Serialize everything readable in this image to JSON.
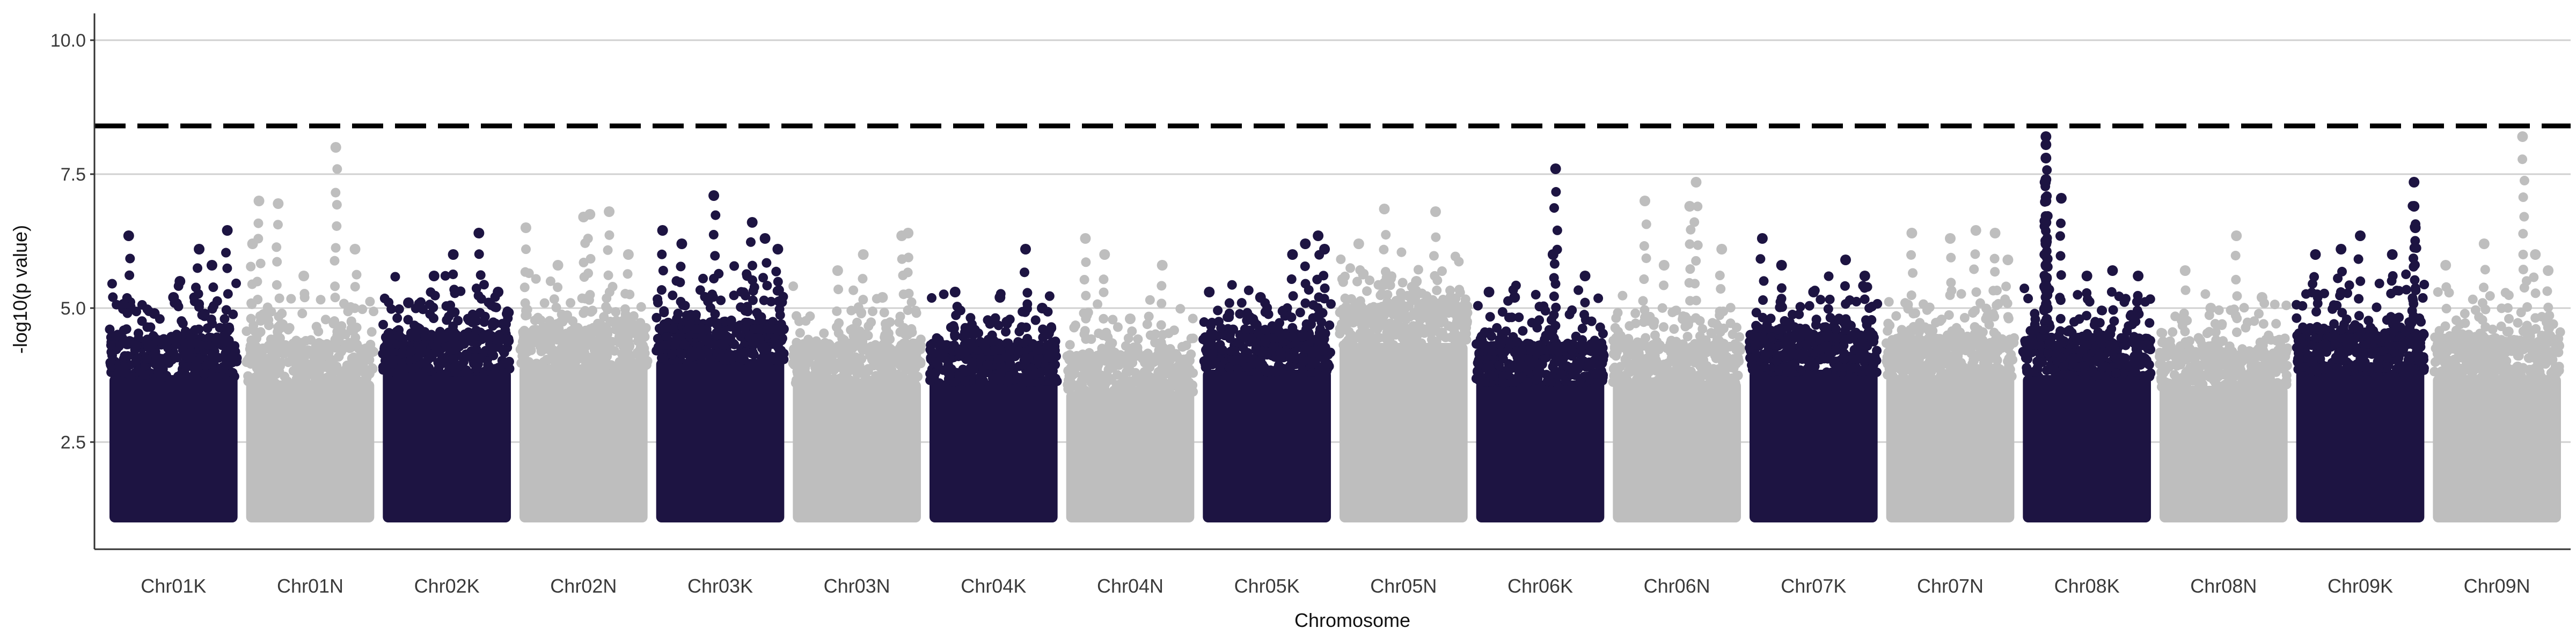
{
  "chart_data": {
    "type": "scatter",
    "subtype": "manhattan",
    "xlabel": "Chromosome",
    "ylabel": "-log10(p value)",
    "ylim": [
      0.5,
      10.5
    ],
    "yticks": [
      2.5,
      5.0,
      7.5,
      10.0
    ],
    "ytick_labels": [
      "2.5",
      "5.0",
      "7.5",
      "10.0"
    ],
    "grid": "horizontal",
    "threshold": 8.4,
    "threshold_style": "dashed",
    "colors": {
      "odd": "#1d1442",
      "even": "#bebebe",
      "grid": "#d0d0d0",
      "threshold": "#000000"
    },
    "categories": [
      "Chr01K",
      "Chr01N",
      "Chr02K",
      "Chr02N",
      "Chr03K",
      "Chr03N",
      "Chr04K",
      "Chr04N",
      "Chr05K",
      "Chr05N",
      "Chr06K",
      "Chr06N",
      "Chr07K",
      "Chr07N",
      "Chr08K",
      "Chr08N",
      "Chr09K",
      "Chr09N"
    ],
    "series": [
      {
        "chrom": "Chr01K",
        "color": "#1d1442",
        "body_max": 4.3,
        "peaks": [
          [
            0.15,
            6.35
          ],
          [
            0.35,
            4.9
          ],
          [
            0.55,
            5.5
          ],
          [
            0.7,
            6.1
          ],
          [
            0.8,
            5.8
          ],
          [
            0.92,
            6.45
          ],
          [
            0.5,
            5.2
          ]
        ]
      },
      {
        "chrom": "Chr01N",
        "color": "#bebebe",
        "body_max": 4.2,
        "peaks": [
          [
            0.1,
            7.0
          ],
          [
            0.25,
            6.95
          ],
          [
            0.7,
            8.0
          ],
          [
            0.45,
            5.6
          ],
          [
            0.85,
            6.1
          ],
          [
            0.05,
            6.2
          ]
        ]
      },
      {
        "chrom": "Chr02K",
        "color": "#1d1442",
        "body_max": 4.4,
        "peaks": [
          [
            0.4,
            5.6
          ],
          [
            0.55,
            6.0
          ],
          [
            0.75,
            6.4
          ],
          [
            0.9,
            5.3
          ],
          [
            0.2,
            5.1
          ]
        ]
      },
      {
        "chrom": "Chr02N",
        "color": "#bebebe",
        "body_max": 4.5,
        "peaks": [
          [
            0.05,
            6.5
          ],
          [
            0.3,
            5.8
          ],
          [
            0.5,
            6.7
          ],
          [
            0.55,
            6.75
          ],
          [
            0.7,
            6.8
          ],
          [
            0.85,
            6.0
          ]
        ]
      },
      {
        "chrom": "Chr03K",
        "color": "#1d1442",
        "body_max": 4.6,
        "peaks": [
          [
            0.05,
            6.45
          ],
          [
            0.2,
            6.2
          ],
          [
            0.45,
            7.1
          ],
          [
            0.75,
            6.6
          ],
          [
            0.85,
            6.3
          ],
          [
            0.95,
            6.1
          ]
        ]
      },
      {
        "chrom": "Chr03N",
        "color": "#bebebe",
        "body_max": 4.2,
        "peaks": [
          [
            0.35,
            5.7
          ],
          [
            0.55,
            6.0
          ],
          [
            0.85,
            6.35
          ],
          [
            0.9,
            6.4
          ],
          [
            0.7,
            5.2
          ]
        ]
      },
      {
        "chrom": "Chr04K",
        "color": "#1d1442",
        "body_max": 4.2,
        "peaks": [
          [
            0.2,
            5.3
          ],
          [
            0.55,
            5.2
          ],
          [
            0.75,
            6.1
          ],
          [
            0.88,
            5.0
          ]
        ]
      },
      {
        "chrom": "Chr04N",
        "color": "#bebebe",
        "body_max": 4.0,
        "peaks": [
          [
            0.15,
            6.3
          ],
          [
            0.3,
            6.0
          ],
          [
            0.75,
            5.8
          ],
          [
            0.5,
            4.8
          ]
        ]
      },
      {
        "chrom": "Chr05K",
        "color": "#1d1442",
        "body_max": 4.4,
        "peaks": [
          [
            0.05,
            5.3
          ],
          [
            0.45,
            5.2
          ],
          [
            0.7,
            6.0
          ],
          [
            0.8,
            6.2
          ],
          [
            0.9,
            6.35
          ],
          [
            0.95,
            6.1
          ]
        ]
      },
      {
        "chrom": "Chr05N",
        "color": "#bebebe",
        "body_max": 4.9,
        "peaks": [
          [
            0.15,
            6.2
          ],
          [
            0.35,
            6.85
          ],
          [
            0.75,
            6.8
          ],
          [
            0.6,
            5.5
          ]
        ]
      },
      {
        "chrom": "Chr06K",
        "color": "#1d1442",
        "body_max": 4.2,
        "peaks": [
          [
            0.1,
            5.3
          ],
          [
            0.3,
            5.2
          ],
          [
            0.62,
            7.6
          ],
          [
            0.6,
            6.0
          ],
          [
            0.85,
            5.6
          ]
        ]
      },
      {
        "chrom": "Chr06N",
        "color": "#bebebe",
        "body_max": 4.2,
        "peaks": [
          [
            0.25,
            7.0
          ],
          [
            0.65,
            7.35
          ],
          [
            0.6,
            6.9
          ],
          [
            0.85,
            6.1
          ],
          [
            0.4,
            5.8
          ]
        ]
      },
      {
        "chrom": "Chr07K",
        "color": "#1d1442",
        "body_max": 4.4,
        "peaks": [
          [
            0.1,
            6.3
          ],
          [
            0.25,
            5.8
          ],
          [
            0.75,
            5.9
          ],
          [
            0.9,
            5.6
          ],
          [
            0.5,
            5.3
          ]
        ]
      },
      {
        "chrom": "Chr07N",
        "color": "#bebebe",
        "body_max": 4.3,
        "peaks": [
          [
            0.2,
            6.4
          ],
          [
            0.5,
            6.3
          ],
          [
            0.7,
            6.45
          ],
          [
            0.85,
            6.4
          ],
          [
            0.95,
            5.9
          ]
        ]
      },
      {
        "chrom": "Chr08K",
        "color": "#1d1442",
        "body_max": 4.3,
        "peaks": [
          [
            0.18,
            8.2
          ],
          [
            0.18,
            8.05
          ],
          [
            0.18,
            7.8
          ],
          [
            0.18,
            7.4
          ],
          [
            0.18,
            7.0
          ],
          [
            0.18,
            6.6
          ],
          [
            0.18,
            6.2
          ],
          [
            0.18,
            5.8
          ],
          [
            0.17,
            5.4
          ],
          [
            0.19,
            5.0
          ],
          [
            0.3,
            7.05
          ],
          [
            0.5,
            5.6
          ],
          [
            0.7,
            5.7
          ],
          [
            0.9,
            5.6
          ]
        ]
      },
      {
        "chrom": "Chr08N",
        "color": "#bebebe",
        "body_max": 4.1,
        "peaks": [
          [
            0.2,
            5.7
          ],
          [
            0.6,
            6.35
          ],
          [
            0.8,
            5.2
          ],
          [
            0.4,
            5.0
          ]
        ]
      },
      {
        "chrom": "Chr09K",
        "color": "#1d1442",
        "body_max": 4.4,
        "peaks": [
          [
            0.15,
            6.0
          ],
          [
            0.35,
            6.1
          ],
          [
            0.5,
            6.35
          ],
          [
            0.75,
            6.0
          ],
          [
            0.92,
            7.35
          ],
          [
            0.92,
            6.9
          ],
          [
            0.93,
            6.5
          ]
        ]
      },
      {
        "chrom": "Chr09N",
        "color": "#bebebe",
        "body_max": 4.3,
        "peaks": [
          [
            0.1,
            5.8
          ],
          [
            0.4,
            6.2
          ],
          [
            0.7,
            8.2
          ],
          [
            0.8,
            6.0
          ],
          [
            0.9,
            5.7
          ]
        ]
      }
    ]
  }
}
